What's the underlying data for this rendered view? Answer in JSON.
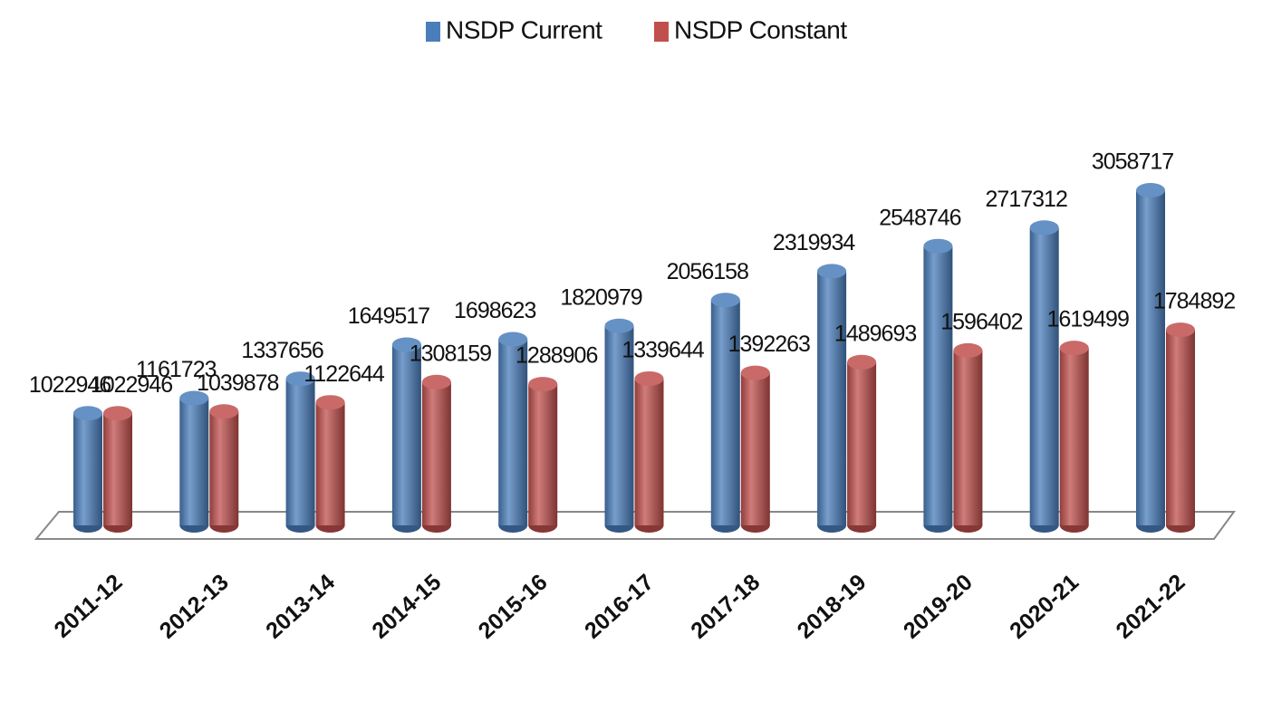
{
  "chart_data": {
    "type": "bar3d",
    "categories": [
      "2011-12",
      "2012-13",
      "2013-14",
      "2014-15",
      "2015-16",
      "2016-17",
      "2017-18",
      "2018-19",
      "2019-20",
      "2020-21",
      "2021-22"
    ],
    "series": [
      {
        "name": "NSDP Current",
        "color": "#4a7ebb",
        "values": [
          1022946,
          1161723,
          1337656,
          1649517,
          1698623,
          1820979,
          2056158,
          2319934,
          2548746,
          2717312,
          3058717
        ]
      },
      {
        "name": "NSDP Constant",
        "color": "#c0504d",
        "values": [
          1022946,
          1039878,
          1122644,
          1308159,
          1288906,
          1339644,
          1392263,
          1489693,
          1596402,
          1619499,
          1784892
        ]
      }
    ],
    "legend": "top"
  }
}
